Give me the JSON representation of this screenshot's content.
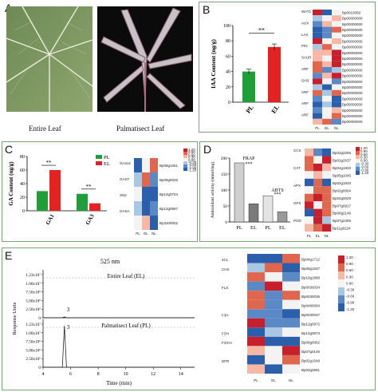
{
  "panels": {
    "a": {
      "letter": "A",
      "captions": [
        "Entire Leaf",
        "Palmatisect Leaf"
      ]
    },
    "b": {
      "letter": "B",
      "ylabel": "IAA Content (ng/g)",
      "significance": "**",
      "heatmap_labels": [
        "Bp0010059",
        "Bp00000000",
        "Bp00000000",
        "Bp00000000",
        "Bp00000000",
        "Bp00000000",
        "Bp00000000",
        "Bp00000000",
        "Bp00000000",
        "Bp00000000",
        "Bp00000000",
        "Bp00000000",
        "Bp00000000",
        "Bp00000000",
        "Bp00000000",
        "Bp00000000",
        "Bp00000000",
        "Bp00000000",
        "Bp00000000",
        "Bp00000000"
      ],
      "heatmap_groups": [
        "WAT1",
        "AUX",
        "LAX",
        "PIN",
        "SAUR",
        "ARF",
        "GH3",
        "ARF",
        "ARF",
        "ARF"
      ],
      "heatmap_cols": [
        "PL",
        "EL",
        "NL"
      ]
    },
    "c": {
      "letter": "C",
      "ylabel": "GA Content (ng/g)",
      "significance": [
        "**",
        "**"
      ],
      "heatmap_groups": [
        "GA2ox",
        "GAST",
        "SN2",
        "GASA"
      ],
      "heatmap_labels": [
        "Bp09g1061",
        "Bp09g0025",
        "Bp12g0704",
        "Bp12g0897",
        "Bp3200002"
      ],
      "heatmap_cols": [
        "PL",
        "EL",
        "NL"
      ],
      "scale": [
        "1.20",
        "0.90",
        "0.60",
        "0.30",
        "0.00",
        "-0.30",
        "-0.60",
        "-0.90",
        "-1.20"
      ]
    },
    "d": {
      "letter": "D",
      "ylabel": "Antioxidant activity (mmol/mg)",
      "annotations": [
        "FRAP",
        "ABTS",
        "***",
        "***"
      ],
      "heatmap_groups": [
        "CCS",
        "CAT",
        "APX",
        "GPX",
        "POD"
      ],
      "heatmap_labels": [
        "Bp02g2255",
        "Bp02g2637",
        "Bp04g1833",
        "Bp05g1045",
        "Bp02g1833",
        "Bp02g0004",
        "Bp02g0029",
        "Bp07g0917",
        "Bp00g2149",
        "Bp07g2405",
        "Bp11g0224"
      ],
      "heatmap_cols": [
        "PL",
        "EL",
        "NL"
      ],
      "scale": [
        "1.20",
        "0.90",
        "0.60",
        "0.30",
        "0.00",
        "-0.30",
        "-0.60",
        "-0.90",
        "-1.20"
      ]
    },
    "e": {
      "letter": "E",
      "wavelength": "525 nm",
      "ylabel": "Response Units",
      "xlabel": "Time (min)",
      "traces": [
        "Entire Leaf (EL)",
        "Palmatisect Leaf (PL)"
      ],
      "peak_label": "3",
      "yticks_top": [
        "1.23x10⁷",
        "1.00x10⁷",
        "7.50x10⁶",
        "5.00x10⁶",
        "2.50x10⁶",
        "0"
      ],
      "yticks_bottom": [
        "1.23x10⁷",
        "1.00x10⁷",
        "7.50x10⁶",
        "5.00x10⁶",
        "2.50x10⁶",
        "0"
      ],
      "xticks": [
        "4",
        "6",
        "8",
        "10",
        "12",
        "14"
      ],
      "heatmap_groups": [
        "4CL",
        "CHS",
        "FLS",
        "F3H",
        "F3'H",
        "F3'5'H",
        "DFR"
      ],
      "heatmap_labels": [
        "Bp04g1712",
        "Bp05g1537",
        "Bp10g1888",
        "Bp0030034",
        "Bp0030036",
        "Bp0480004",
        "Bp0030037",
        "Bp12g0972",
        "Bp12g0973",
        "Bp06g0062",
        "Bp07g0146",
        "Bp02g1649",
        "Bp02g2691"
      ],
      "heatmap_cols": [
        "PL",
        "EL",
        "NL"
      ],
      "scale": [
        "1.20",
        "0.90",
        "0.60",
        "0.30",
        "0.00",
        "-0.30",
        "-0.60",
        "-0.90",
        "-1.20"
      ]
    }
  },
  "chart_data": [
    {
      "type": "bar",
      "panel": "B",
      "categories": [
        "PL",
        "EL"
      ],
      "values": [
        40,
        72
      ],
      "errors": [
        3,
        4
      ],
      "ylabel": "IAA Content (ng/g)",
      "ylim": [
        0,
        100
      ],
      "yticks": [
        0,
        20,
        40,
        60,
        80,
        100
      ],
      "colors": [
        "#1f9e3a",
        "#e52222"
      ]
    },
    {
      "type": "bar",
      "panel": "C",
      "categories": [
        "GA1",
        "GA3"
      ],
      "series": [
        {
          "name": "PL",
          "values": [
            29,
            25
          ],
          "color": "#1f9e3a"
        },
        {
          "name": "EL",
          "values": [
            60,
            11
          ],
          "color": "#e52222"
        }
      ],
      "ylabel": "GA Content (ng/g)",
      "ylim": [
        0,
        80
      ],
      "yticks": [
        0,
        20,
        40,
        60,
        80
      ]
    },
    {
      "type": "bar",
      "panel": "D",
      "categories": [
        "PL",
        "EL",
        "PL",
        "EL"
      ],
      "values": [
        185,
        57,
        82,
        32
      ],
      "groups": [
        "FRAP",
        "FRAP",
        "ABTS",
        "ABTS"
      ],
      "ylabel": "Antioxidant activity (mmol/mg)",
      "ylim": [
        0,
        200
      ],
      "yticks": [
        0,
        50,
        100,
        150,
        200
      ]
    },
    {
      "type": "line",
      "panel": "E",
      "xlabel": "Time (min)",
      "ylabel": "Response Units",
      "series": [
        {
          "name": "Entire Leaf (EL)",
          "x": [
            4,
            5.4,
            5.55,
            5.7,
            15
          ],
          "y": [
            0,
            0,
            0.02,
            0,
            0
          ]
        },
        {
          "name": "Palmatisect Leaf (PL)",
          "x": [
            4,
            5.4,
            5.55,
            5.7,
            15
          ],
          "y": [
            0,
            0,
            1.0,
            0,
            0
          ]
        }
      ],
      "xlim": [
        4,
        15
      ]
    }
  ]
}
